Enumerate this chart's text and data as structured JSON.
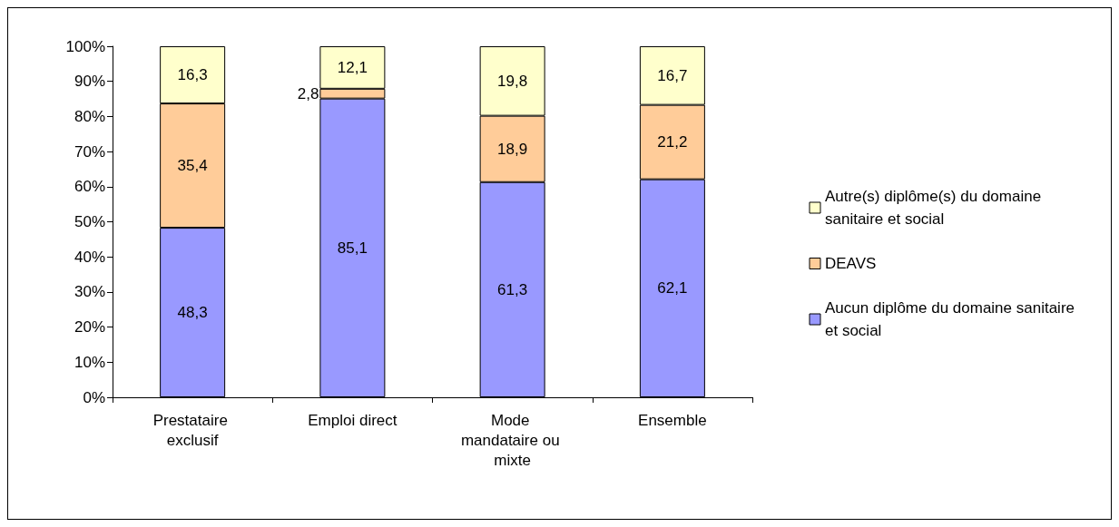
{
  "chart_data": {
    "type": "bar",
    "stacked": true,
    "categories": [
      "Prestataire exclusif",
      "Emploi direct",
      "Mode mandataire ou mixte",
      "Ensemble"
    ],
    "series": [
      {
        "name": "Aucun diplôme du domaine sanitaire et social",
        "color": "#9999ff",
        "values": [
          48.3,
          85.1,
          61.3,
          62.1
        ],
        "value_labels": [
          "48,3",
          "85,1",
          "61,3",
          "62,1"
        ]
      },
      {
        "name": "DEAVS",
        "color": "#ffcc99",
        "values": [
          35.4,
          2.8,
          18.9,
          21.2
        ],
        "value_labels": [
          "35,4",
          "2,8",
          "18,9",
          "21,2"
        ]
      },
      {
        "name": "Autre(s) diplôme(s) du domaine sanitaire et social",
        "color": "#ffffcc",
        "values": [
          16.3,
          12.1,
          19.8,
          16.7
        ],
        "value_labels": [
          "16,3",
          "12,1",
          "19,8",
          "16,7"
        ]
      }
    ],
    "ylim": [
      0,
      100
    ],
    "yticks": [
      {
        "value": 0,
        "label": "0%"
      },
      {
        "value": 10,
        "label": "10%"
      },
      {
        "value": 20,
        "label": "20%"
      },
      {
        "value": 30,
        "label": "30%"
      },
      {
        "value": 40,
        "label": "40%"
      },
      {
        "value": 50,
        "label": "50%"
      },
      {
        "value": 60,
        "label": "60%"
      },
      {
        "value": 70,
        "label": "70%"
      },
      {
        "value": 80,
        "label": "80%"
      },
      {
        "value": 90,
        "label": "90%"
      },
      {
        "value": 100,
        "label": "100%"
      }
    ],
    "grid": false,
    "legend": "right"
  }
}
